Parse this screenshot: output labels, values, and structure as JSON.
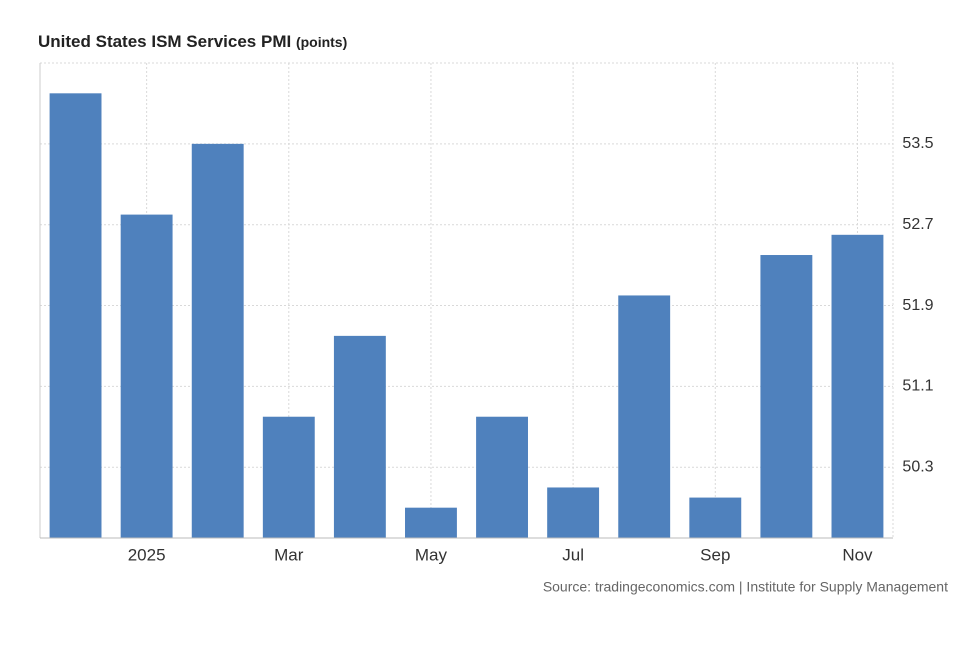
{
  "chart_data": {
    "type": "bar",
    "title": "United States ISM Services PMI",
    "subtitle": "(points)",
    "categories": [
      null,
      "2025",
      null,
      "Mar",
      null,
      "May",
      null,
      "Jul",
      null,
      "Sep",
      null,
      "Nov"
    ],
    "values": [
      54.0,
      52.8,
      53.5,
      50.8,
      51.6,
      49.9,
      50.8,
      50.1,
      52.0,
      50.0,
      52.4,
      52.6
    ],
    "color": "#4f81bd",
    "ylim": [
      49.6,
      54.3
    ],
    "yticks": [
      50.3,
      51.1,
      51.9,
      52.7,
      53.5
    ],
    "grid": true,
    "source": "Source: tradingeconomics.com | Institute for Supply Management"
  }
}
